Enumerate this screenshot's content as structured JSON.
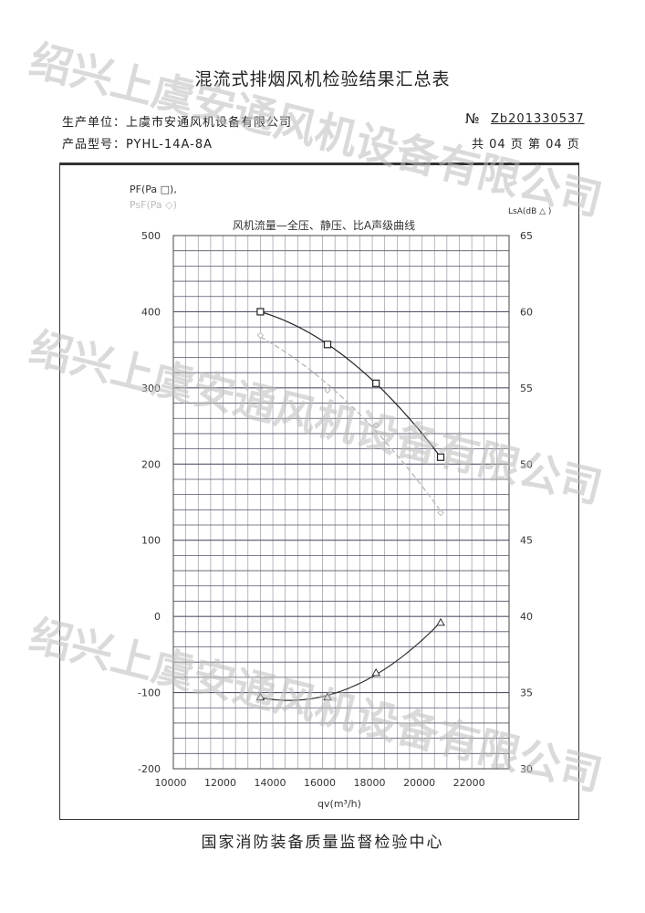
{
  "document": {
    "title": "混流式排烟风机检验结果汇总表",
    "manufacturer_label": "生产单位：上虞市安通风机设备有限公司",
    "model_label": "产品型号：PYHL-14A-8A",
    "number_prefix": "№",
    "number_value": "Zb201330537",
    "pages": "共 04 页  第 04 页",
    "footer": "国家消防装备质量监督检验中心",
    "watermark": "绍兴上虞安通风机设备有限公司"
  },
  "chart_data": {
    "type": "line",
    "title": "风机流量—全压、静压、比A声级曲线",
    "xlabel": "qv(m³/h)",
    "ylabel_left_1": "PF(Pa □),",
    "ylabel_left_2": "PsF(Pa ◇)",
    "ylabel_right": "LsA(dB △ )",
    "xlim": [
      10000,
      23500
    ],
    "ylim_left": [
      -200,
      500
    ],
    "ylim_right": [
      30,
      65
    ],
    "x_ticks": [
      "10000",
      "12000",
      "14000",
      "16000",
      "18000",
      "20000",
      "22000"
    ],
    "y_left_ticks": [
      "500",
      "400",
      "300",
      "200",
      "100",
      "0",
      "-100",
      "-200"
    ],
    "y_right_ticks": [
      "65",
      "60",
      "55",
      "50",
      "45",
      "40",
      "35",
      "30"
    ],
    "grid": true,
    "x": [
      13500,
      16200,
      18150,
      20750
    ],
    "series": [
      {
        "key": "total_pressure",
        "axis": "left",
        "marker": "square",
        "color": "#222222",
        "values": [
          400,
          357,
          306,
          209
        ]
      },
      {
        "key": "static_pressure",
        "axis": "left",
        "marker": "diamond",
        "color": "#bbbbbb",
        "values": [
          369,
          297,
          251,
          136
        ]
      },
      {
        "key": "sound_level",
        "axis": "right",
        "marker": "triangle",
        "color": "#333333",
        "values": [
          34.7,
          34.7,
          36.3,
          39.6
        ]
      }
    ]
  }
}
